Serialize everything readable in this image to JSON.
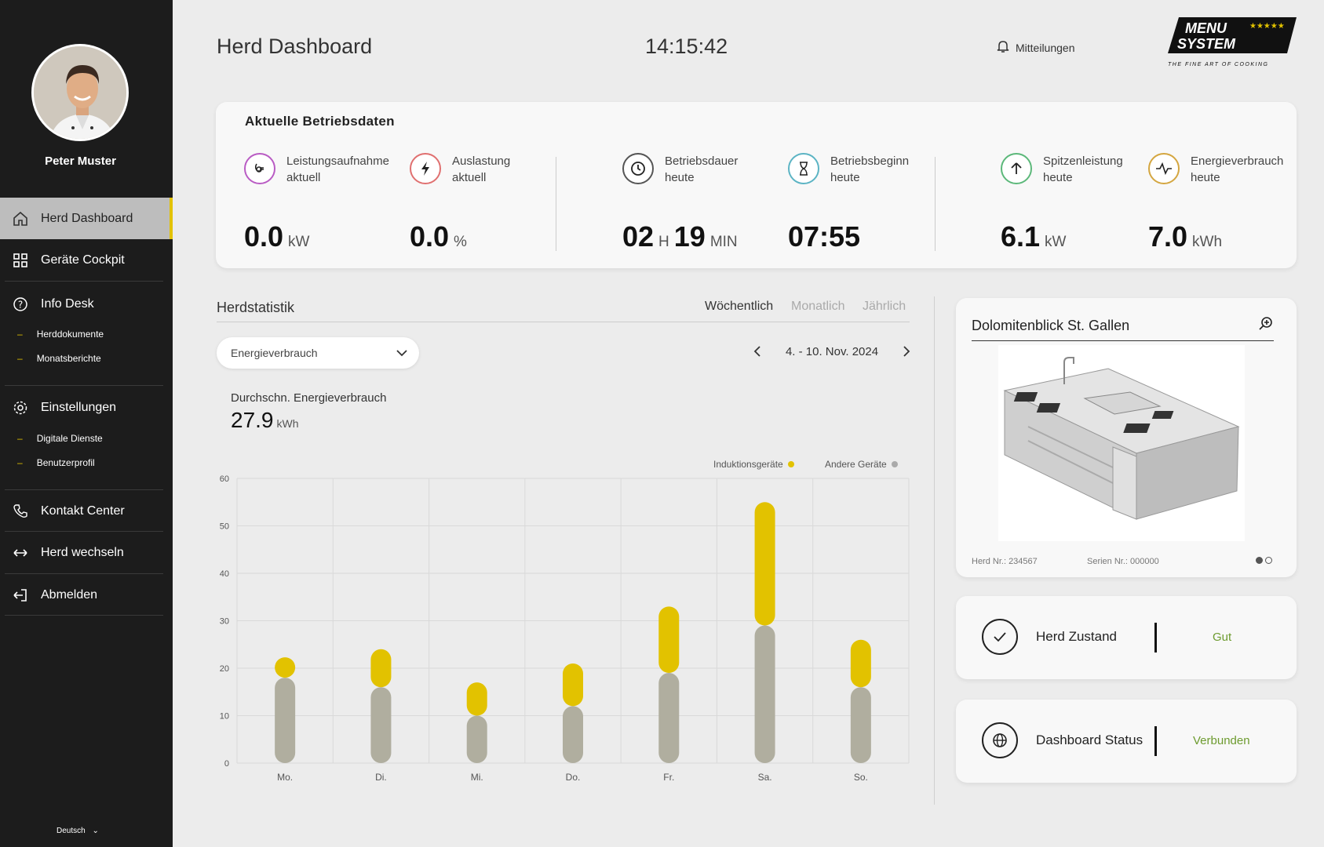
{
  "user": {
    "name": "Peter Muster"
  },
  "sidebar": {
    "items": [
      {
        "label": "Herd Dashboard",
        "icon": "home-icon"
      },
      {
        "label": "Geräte Cockpit",
        "icon": "grid-icon"
      },
      {
        "label": "Info Desk",
        "icon": "help-icon"
      },
      {
        "label": "Einstellungen",
        "icon": "gear-icon"
      },
      {
        "label": "Kontakt Center",
        "icon": "phone-icon"
      },
      {
        "label": "Herd wechseln",
        "icon": "swap-icon"
      },
      {
        "label": "Abmelden",
        "icon": "logout-icon"
      }
    ],
    "info_sub": [
      "Herddokumente",
      "Monatsberichte"
    ],
    "settings_sub": [
      "Digitale Dienste",
      "Benutzerprofil"
    ],
    "language": "Deutsch"
  },
  "header": {
    "title": "Herd Dashboard",
    "time": "14:15:42",
    "notifications": "Mitteilungen",
    "logo_line1": "MENU",
    "logo_line2": "SYSTEM",
    "logo_tagline": "THE FINE ART OF COOKING"
  },
  "kpi": {
    "heading": "Aktuelle Betriebsdaten",
    "items": [
      {
        "label1": "Leistungsaufnahme",
        "label2": "aktuell",
        "value": "0.0",
        "unit": "kW",
        "color": "#b95cc4"
      },
      {
        "label1": "Auslastung",
        "label2": "aktuell",
        "value": "0.0",
        "unit": "%",
        "color": "#e07070"
      },
      {
        "label1": "Betriebsdauer",
        "label2": "heute",
        "hours": "02",
        "h_unit": "H",
        "minutes": "19",
        "m_unit": "MIN",
        "color": "#555555"
      },
      {
        "label1": "Betriebsbeginn",
        "label2": "heute",
        "value": "07:55",
        "color": "#5cb4c4"
      },
      {
        "label1": "Spitzenleistung",
        "label2": "heute",
        "value": "6.1",
        "unit": "kW",
        "color": "#5cb87a"
      },
      {
        "label1": "Energieverbrauch",
        "label2": "heute",
        "value": "7.0",
        "unit": "kWh",
        "color": "#d4a640"
      }
    ]
  },
  "stats": {
    "title": "Herdstatistik",
    "tabs": [
      "Wöchentlich",
      "Monatlich",
      "Jährlich"
    ],
    "active_tab": "Wöchentlich",
    "dropdown": "Energieverbrauch",
    "date_range": "4. - 10. Nov. 2024",
    "avg_label": "Durchschn. Energieverbrauch",
    "avg_value": "27.9",
    "avg_unit": "kWh"
  },
  "chart_data": {
    "type": "bar",
    "stacked": true,
    "categories": [
      "Mo.",
      "Di.",
      "Mi.",
      "Do.",
      "Fr.",
      "Sa.",
      "So."
    ],
    "series": [
      {
        "name": "Andere Geräte",
        "color": "#b0ae9f",
        "values": [
          18,
          16,
          10,
          12,
          19,
          29,
          16
        ]
      },
      {
        "name": "Induktionsgeräte",
        "color": "#e2c200",
        "values": [
          3,
          8,
          7,
          9,
          14,
          26,
          10
        ]
      }
    ],
    "ylim": [
      0,
      60
    ],
    "yticks": [
      0,
      10,
      20,
      30,
      40,
      50,
      60
    ],
    "legend_order": [
      "Induktionsgeräte",
      "Andere Geräte"
    ]
  },
  "device": {
    "name": "Dolomitenblick St. Gallen",
    "herd_nr": "Herd Nr.: 234567",
    "serien_nr": "Serien Nr.: 000000"
  },
  "status": {
    "zustand_label": "Herd Zustand",
    "zustand_value": "Gut",
    "dashboard_label": "Dashboard Status",
    "dashboard_value": "Verbunden"
  }
}
